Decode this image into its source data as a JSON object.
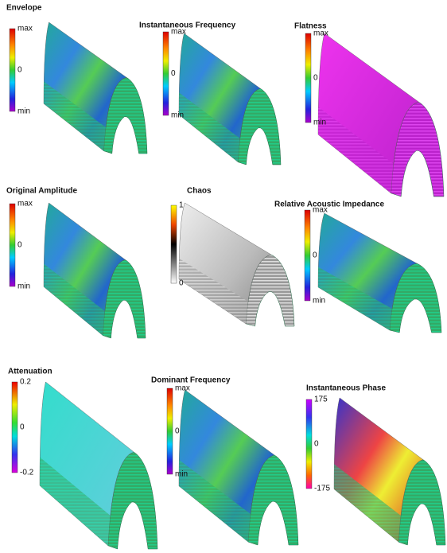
{
  "panels": [
    {
      "title": "Envelope",
      "labels": [
        "max",
        "0",
        "min"
      ]
    },
    {
      "title": "Instantaneous Frequency",
      "labels": [
        "max",
        "0",
        "min"
      ]
    },
    {
      "title": "Flatness",
      "labels": [
        "max",
        "0",
        "min"
      ]
    },
    {
      "title": "Original Amplitude",
      "labels": [
        "max",
        "0",
        "min"
      ]
    },
    {
      "title": "Chaos",
      "labels": [
        "1",
        "0"
      ]
    },
    {
      "title": "Relative Acoustic Impedance",
      "labels": [
        "max",
        "0",
        "min"
      ]
    },
    {
      "title": "Attenuation",
      "labels": [
        "0.2",
        "0",
        "-0.2"
      ]
    },
    {
      "title": "Dominant Frequency",
      "labels": [
        "max",
        "0",
        "min"
      ]
    },
    {
      "title": "Instantaneous Phase",
      "labels": [
        "175",
        "0",
        "-175"
      ]
    }
  ]
}
